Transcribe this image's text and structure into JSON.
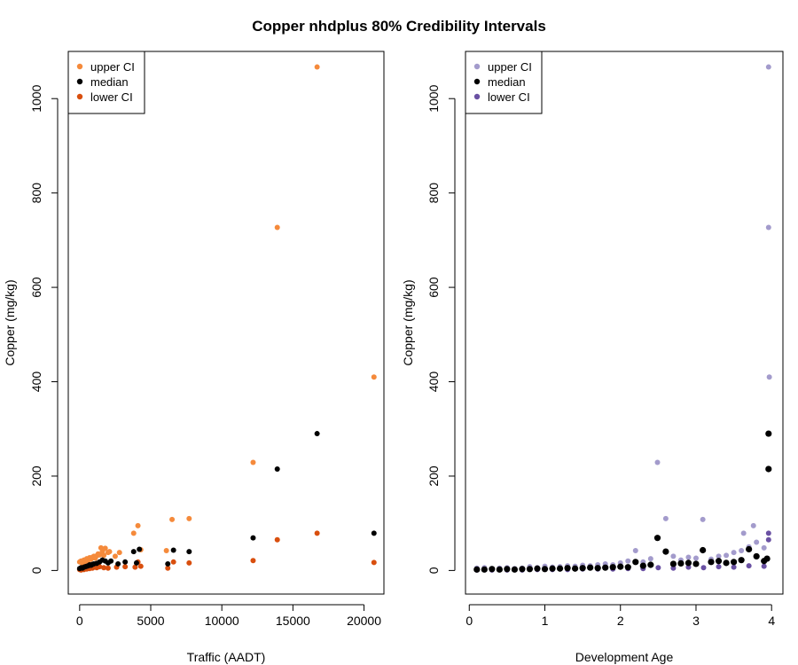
{
  "figure": {
    "title": "Copper nhdplus 80% Credibility Intervals"
  },
  "chart_data": [
    {
      "type": "scatter",
      "xlabel": "Traffic (AADT)",
      "ylabel": "Copper (mg/kg)",
      "xlim": [
        -800,
        21400
      ],
      "ylim": [
        -50,
        1100
      ],
      "xticks": [
        0,
        5000,
        10000,
        15000,
        20000
      ],
      "yticks": [
        0,
        200,
        400,
        600,
        800,
        1000
      ],
      "grid": false,
      "legend_position": "top-left",
      "series": [
        {
          "name": "upper CI",
          "color": "#F58A3B",
          "points": [
            [
              0,
              18
            ],
            [
              100,
              20
            ],
            [
              200,
              15
            ],
            [
              300,
              22
            ],
            [
              400,
              19
            ],
            [
              500,
              25
            ],
            [
              600,
              20
            ],
            [
              700,
              27
            ],
            [
              800,
              24
            ],
            [
              900,
              28
            ],
            [
              1000,
              30
            ],
            [
              1100,
              26
            ],
            [
              1200,
              31
            ],
            [
              1300,
              35
            ],
            [
              1400,
              33
            ],
            [
              1500,
              48
            ],
            [
              1600,
              40
            ],
            [
              1700,
              32
            ],
            [
              1800,
              47
            ],
            [
              2000,
              38
            ],
            [
              2100,
              40
            ],
            [
              2500,
              30
            ],
            [
              2800,
              38
            ],
            [
              3800,
              79
            ],
            [
              4100,
              95
            ],
            [
              4300,
              44
            ],
            [
              6100,
              42
            ],
            [
              6500,
              108
            ],
            [
              7700,
              110
            ],
            [
              12200,
              229
            ],
            [
              13900,
              727
            ],
            [
              16700,
              1067
            ],
            [
              20700,
              410
            ]
          ]
        },
        {
          "name": "median",
          "color": "#000000",
          "points": [
            [
              0,
              4
            ],
            [
              100,
              6
            ],
            [
              200,
              5
            ],
            [
              300,
              7
            ],
            [
              400,
              8
            ],
            [
              500,
              9
            ],
            [
              600,
              10
            ],
            [
              700,
              12
            ],
            [
              800,
              11
            ],
            [
              900,
              13
            ],
            [
              1000,
              14
            ],
            [
              1200,
              15
            ],
            [
              1400,
              18
            ],
            [
              1600,
              22
            ],
            [
              1800,
              20
            ],
            [
              2000,
              16
            ],
            [
              2200,
              20
            ],
            [
              2700,
              14
            ],
            [
              3200,
              18
            ],
            [
              3800,
              40
            ],
            [
              4000,
              16
            ],
            [
              4200,
              45
            ],
            [
              6200,
              14
            ],
            [
              6600,
              43
            ],
            [
              7700,
              40
            ],
            [
              12200,
              69
            ],
            [
              13900,
              215
            ],
            [
              16700,
              290
            ],
            [
              20700,
              79
            ]
          ]
        },
        {
          "name": "lower CI",
          "color": "#D94F0E",
          "points": [
            [
              0,
              2
            ],
            [
              100,
              1
            ],
            [
              200,
              3
            ],
            [
              300,
              2
            ],
            [
              400,
              4
            ],
            [
              500,
              3
            ],
            [
              600,
              5
            ],
            [
              700,
              4
            ],
            [
              800,
              6
            ],
            [
              900,
              5
            ],
            [
              1000,
              7
            ],
            [
              1200,
              6
            ],
            [
              1400,
              8
            ],
            [
              1700,
              6
            ],
            [
              2000,
              5
            ],
            [
              2600,
              7
            ],
            [
              3200,
              8
            ],
            [
              3900,
              7
            ],
            [
              4100,
              18
            ],
            [
              4300,
              9
            ],
            [
              6200,
              5
            ],
            [
              6600,
              18
            ],
            [
              7700,
              16
            ],
            [
              12200,
              21
            ],
            [
              13900,
              65
            ],
            [
              16700,
              79
            ],
            [
              20700,
              17
            ]
          ]
        }
      ]
    },
    {
      "type": "scatter",
      "xlabel": "Development Age",
      "ylabel": "Copper (mg/kg)",
      "xlim": [
        -0.05,
        4.15
      ],
      "ylim": [
        -50,
        1100
      ],
      "xticks": [
        0,
        1,
        2,
        3,
        4
      ],
      "yticks": [
        0,
        200,
        400,
        600,
        800,
        1000
      ],
      "grid": false,
      "legend_position": "top-left",
      "series": [
        {
          "name": "upper CI",
          "color": "#A39BCC",
          "points": [
            [
              0.1,
              5
            ],
            [
              0.2,
              6
            ],
            [
              0.3,
              4
            ],
            [
              0.4,
              5
            ],
            [
              0.5,
              6
            ],
            [
              0.6,
              4
            ],
            [
              0.7,
              5
            ],
            [
              0.8,
              8
            ],
            [
              0.9,
              6
            ],
            [
              1.0,
              9
            ],
            [
              1.1,
              7
            ],
            [
              1.2,
              8
            ],
            [
              1.3,
              10
            ],
            [
              1.4,
              9
            ],
            [
              1.5,
              11
            ],
            [
              1.6,
              10
            ],
            [
              1.7,
              12
            ],
            [
              1.8,
              14
            ],
            [
              1.9,
              12
            ],
            [
              2.0,
              16
            ],
            [
              2.1,
              20
            ],
            [
              2.2,
              42
            ],
            [
              2.3,
              18
            ],
            [
              2.4,
              25
            ],
            [
              2.49,
              229
            ],
            [
              2.6,
              110
            ],
            [
              2.7,
              30
            ],
            [
              2.8,
              22
            ],
            [
              2.9,
              28
            ],
            [
              3.0,
              26
            ],
            [
              3.09,
              108
            ],
            [
              3.2,
              24
            ],
            [
              3.3,
              30
            ],
            [
              3.4,
              32
            ],
            [
              3.5,
              38
            ],
            [
              3.6,
              42
            ],
            [
              3.63,
              79
            ],
            [
              3.7,
              50
            ],
            [
              3.76,
              95
            ],
            [
              3.8,
              60
            ],
            [
              3.9,
              48
            ],
            [
              3.96,
              727
            ],
            [
              3.96,
              1067
            ],
            [
              3.97,
              410
            ]
          ]
        },
        {
          "name": "median",
          "color": "#000000",
          "points": [
            [
              0.1,
              2
            ],
            [
              0.2,
              2
            ],
            [
              0.3,
              3
            ],
            [
              0.4,
              2
            ],
            [
              0.5,
              3
            ],
            [
              0.6,
              2
            ],
            [
              0.7,
              3
            ],
            [
              0.8,
              3
            ],
            [
              0.9,
              4
            ],
            [
              1.0,
              3
            ],
            [
              1.1,
              4
            ],
            [
              1.2,
              4
            ],
            [
              1.3,
              5
            ],
            [
              1.4,
              4
            ],
            [
              1.5,
              5
            ],
            [
              1.6,
              6
            ],
            [
              1.7,
              5
            ],
            [
              1.8,
              6
            ],
            [
              1.9,
              7
            ],
            [
              2.0,
              8
            ],
            [
              2.1,
              7
            ],
            [
              2.2,
              18
            ],
            [
              2.3,
              10
            ],
            [
              2.4,
              12
            ],
            [
              2.49,
              69
            ],
            [
              2.6,
              40
            ],
            [
              2.7,
              14
            ],
            [
              2.8,
              15
            ],
            [
              2.9,
              16
            ],
            [
              3.0,
              14
            ],
            [
              3.09,
              43
            ],
            [
              3.2,
              18
            ],
            [
              3.3,
              20
            ],
            [
              3.4,
              16
            ],
            [
              3.5,
              18
            ],
            [
              3.6,
              22
            ],
            [
              3.7,
              45
            ],
            [
              3.8,
              30
            ],
            [
              3.9,
              20
            ],
            [
              3.94,
              25
            ],
            [
              3.96,
              215
            ],
            [
              3.96,
              290
            ]
          ]
        },
        {
          "name": "lower CI",
          "color": "#6A51A3",
          "points": [
            [
              0.1,
              1
            ],
            [
              0.3,
              1
            ],
            [
              0.5,
              1
            ],
            [
              0.7,
              1
            ],
            [
              0.9,
              2
            ],
            [
              1.1,
              2
            ],
            [
              1.3,
              2
            ],
            [
              1.5,
              3
            ],
            [
              1.7,
              3
            ],
            [
              1.9,
              3
            ],
            [
              2.1,
              4
            ],
            [
              2.3,
              4
            ],
            [
              2.5,
              6
            ],
            [
              2.7,
              5
            ],
            [
              2.9,
              7
            ],
            [
              3.1,
              6
            ],
            [
              3.3,
              8
            ],
            [
              3.5,
              7
            ],
            [
              3.7,
              10
            ],
            [
              3.9,
              9
            ],
            [
              3.96,
              65
            ],
            [
              3.96,
              79
            ]
          ]
        }
      ]
    }
  ]
}
